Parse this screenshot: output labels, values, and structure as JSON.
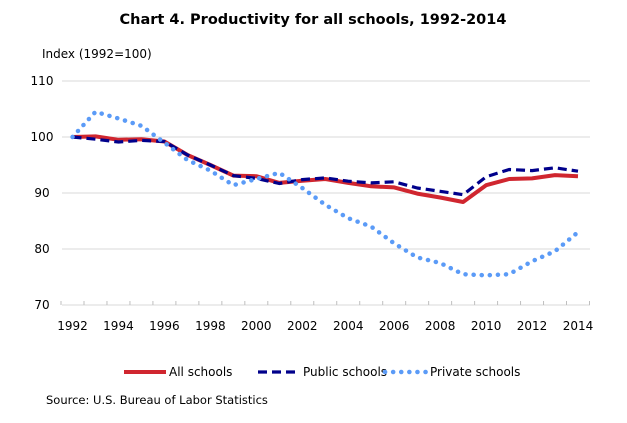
{
  "chart_data": {
    "type": "line",
    "title": "Chart 4. Productivity for all schools, 1992-2014",
    "ylabel": "Index (1992=100)",
    "xlabel": "",
    "ylim": [
      70,
      110
    ],
    "yticks": [
      70,
      80,
      90,
      100,
      110
    ],
    "xlim": [
      1992,
      2014
    ],
    "xtick_labels": [
      "1992",
      "1994",
      "1996",
      "1998",
      "2000",
      "2002",
      "2004",
      "2006",
      "2008",
      "2010",
      "2012",
      "2014"
    ],
    "grid": true,
    "legend_position": "bottom",
    "x": [
      1992,
      1993,
      1994,
      1995,
      1996,
      1997,
      1998,
      1999,
      2000,
      2001,
      2002,
      2003,
      2004,
      2005,
      2006,
      2007,
      2008,
      2009,
      2010,
      2011,
      2012,
      2013,
      2014
    ],
    "series": [
      {
        "name": "All schools",
        "style": "solid",
        "color": "#d0262f",
        "values": [
          100.0,
          100.1,
          99.5,
          99.6,
          99.2,
          96.8,
          95.0,
          93.1,
          93.0,
          91.8,
          92.2,
          92.5,
          91.8,
          91.2,
          91.0,
          89.9,
          89.2,
          88.4,
          91.4,
          92.5,
          92.6,
          93.2,
          93.0
        ]
      },
      {
        "name": "Public schools",
        "style": "dashed",
        "color": "#00008b",
        "values": [
          100.0,
          99.6,
          99.1,
          99.4,
          99.2,
          96.8,
          95.0,
          93.1,
          92.6,
          91.7,
          92.4,
          92.7,
          92.1,
          91.8,
          92.0,
          90.9,
          90.3,
          89.7,
          92.9,
          94.2,
          94.0,
          94.5,
          93.9
        ]
      },
      {
        "name": "Private schools",
        "style": "dotted",
        "color": "#5b9bf7",
        "values": [
          100.0,
          104.5,
          103.3,
          102.0,
          99.0,
          95.9,
          94.0,
          91.4,
          92.5,
          93.6,
          90.9,
          87.9,
          85.5,
          84.0,
          81.0,
          78.5,
          77.5,
          75.5,
          75.3,
          75.5,
          77.8,
          79.6,
          83.0
        ]
      }
    ],
    "source": "Source: U.S. Bureau of Labor Statistics"
  }
}
